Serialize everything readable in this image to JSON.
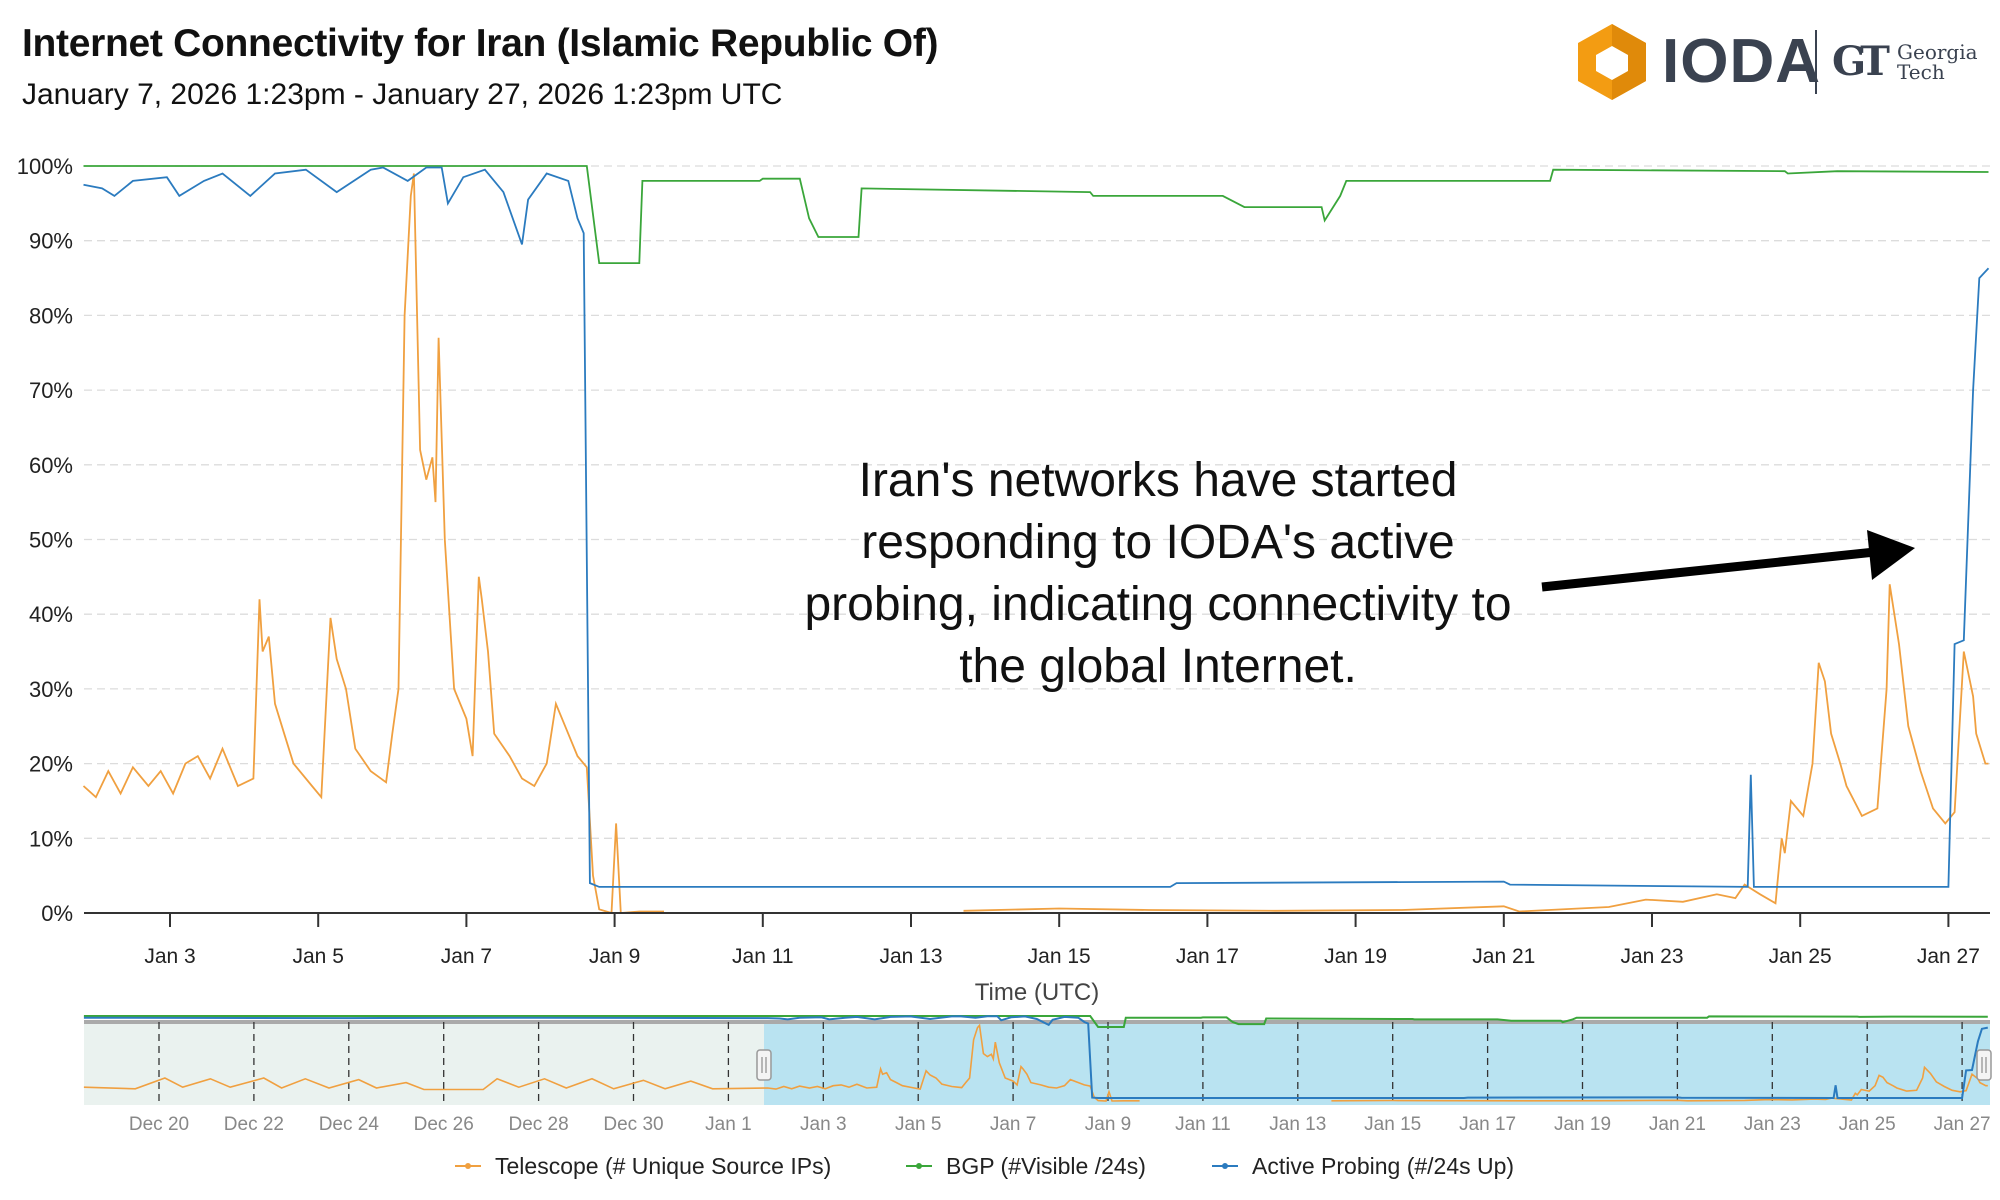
{
  "header": {
    "title": "Internet Connectivity for  Iran (Islamic Republic Of)",
    "subtitle": "January 7, 2026 1:23pm - January 27, 2026 1:23pm UTC"
  },
  "logo": {
    "ioda": "IODA",
    "gt_mark": "GT",
    "gt_line1": "Georgia",
    "gt_line2": "Tech"
  },
  "colors": {
    "telescope": "#f0a040",
    "bgp": "#3aa63a",
    "active_probing": "#2b7bbf",
    "logo_orange": "#f39c12",
    "navigator_selected": "#b9e3f1",
    "navigator_unselected": "#eaf2ef"
  },
  "chart_data": {
    "type": "line",
    "title": "Internet Connectivity for  Iran (Islamic Republic Of)",
    "xlabel": "Time (UTC)",
    "ylabel": "",
    "xlim": [
      "2026-01-01T20:00",
      "2026-01-27T13:23"
    ],
    "ylim": [
      0,
      100
    ],
    "y_ticks": [
      "0%",
      "10%",
      "20%",
      "30%",
      "40%",
      "50%",
      "60%",
      "70%",
      "80%",
      "90%",
      "100%"
    ],
    "x_ticks": [
      {
        "date": "2026-01-03",
        "label": "Jan 3"
      },
      {
        "date": "2026-01-05",
        "label": "Jan 5"
      },
      {
        "date": "2026-01-07",
        "label": "Jan 7"
      },
      {
        "date": "2026-01-09",
        "label": "Jan 9"
      },
      {
        "date": "2026-01-11",
        "label": "Jan 11"
      },
      {
        "date": "2026-01-13",
        "label": "Jan 13"
      },
      {
        "date": "2026-01-15",
        "label": "Jan 15"
      },
      {
        "date": "2026-01-17",
        "label": "Jan 17"
      },
      {
        "date": "2026-01-19",
        "label": "Jan 19"
      },
      {
        "date": "2026-01-21",
        "label": "Jan 21"
      },
      {
        "date": "2026-01-23",
        "label": "Jan 23"
      },
      {
        "date": "2026-01-25",
        "label": "Jan 25"
      },
      {
        "date": "2026-01-27",
        "label": "Jan 27"
      }
    ],
    "grid": true,
    "legend_position": "bottom",
    "series": [
      {
        "name": "Telescope (# Unique Source IPs)",
        "color": "#f0a040",
        "points": [
          [
            "2026-01-01T20:00",
            17
          ],
          [
            "2026-01-02T00:00",
            15.5
          ],
          [
            "2026-01-02T04:00",
            19
          ],
          [
            "2026-01-02T08:00",
            16
          ],
          [
            "2026-01-02T12:00",
            19.5
          ],
          [
            "2026-01-02T17:00",
            17
          ],
          [
            "2026-01-02T21:00",
            19
          ],
          [
            "2026-01-03T01:00",
            16
          ],
          [
            "2026-01-03T05:00",
            20
          ],
          [
            "2026-01-03T09:00",
            21
          ],
          [
            "2026-01-03T13:00",
            18
          ],
          [
            "2026-01-03T17:00",
            22
          ],
          [
            "2026-01-03T22:00",
            17
          ],
          [
            "2026-01-04T03:00",
            18
          ],
          [
            "2026-01-04T05:00",
            42
          ],
          [
            "2026-01-04T06:00",
            35
          ],
          [
            "2026-01-04T08:00",
            37
          ],
          [
            "2026-01-04T10:00",
            28
          ],
          [
            "2026-01-04T13:00",
            24
          ],
          [
            "2026-01-04T16:00",
            20
          ],
          [
            "2026-01-04T22:00",
            17
          ],
          [
            "2026-01-05T01:00",
            15.5
          ],
          [
            "2026-01-05T04:00",
            39.5
          ],
          [
            "2026-01-05T06:00",
            34
          ],
          [
            "2026-01-05T09:00",
            30
          ],
          [
            "2026-01-05T12:00",
            22
          ],
          [
            "2026-01-05T17:00",
            19
          ],
          [
            "2026-01-05T22:00",
            17.5
          ],
          [
            "2026-01-06T00:00",
            24
          ],
          [
            "2026-01-06T02:00",
            30
          ],
          [
            "2026-01-06T04:00",
            80
          ],
          [
            "2026-01-06T06:00",
            96
          ],
          [
            "2026-01-06T07:00",
            99
          ],
          [
            "2026-01-06T09:00",
            62
          ],
          [
            "2026-01-06T11:00",
            58
          ],
          [
            "2026-01-06T13:00",
            61
          ],
          [
            "2026-01-06T14:00",
            55
          ],
          [
            "2026-01-06T15:00",
            77
          ],
          [
            "2026-01-06T17:00",
            50
          ],
          [
            "2026-01-06T20:00",
            30
          ],
          [
            "2026-01-07T00:00",
            26
          ],
          [
            "2026-01-07T02:00",
            21
          ],
          [
            "2026-01-07T04:00",
            45
          ],
          [
            "2026-01-07T05:00",
            42
          ],
          [
            "2026-01-07T07:00",
            35
          ],
          [
            "2026-01-07T09:00",
            24
          ],
          [
            "2026-01-07T14:00",
            21
          ],
          [
            "2026-01-07T18:00",
            18
          ],
          [
            "2026-01-07T22:00",
            17
          ],
          [
            "2026-01-08T02:00",
            20
          ],
          [
            "2026-01-08T05:00",
            28
          ],
          [
            "2026-01-08T08:00",
            25
          ],
          [
            "2026-01-08T12:00",
            21
          ],
          [
            "2026-01-08T15:00",
            19.5
          ],
          [
            "2026-01-08T17:00",
            5
          ],
          [
            "2026-01-08T19:00",
            0.5
          ],
          [
            "2026-01-08T23:00",
            0
          ],
          [
            "2026-01-09T00:30",
            12
          ],
          [
            "2026-01-09T02:00",
            0
          ],
          [
            "2026-01-09T08:00",
            0.2
          ],
          [
            "2026-01-09T16:00",
            0.2
          ],
          null,
          [
            "2026-01-13T17:00",
            0.3
          ],
          [
            "2026-01-15T00:00",
            0.6
          ],
          [
            "2026-01-16T05:00",
            0.4
          ],
          [
            "2026-01-17T22:00",
            0.3
          ],
          [
            "2026-01-19T15:00",
            0.4
          ],
          [
            "2026-01-21T00:00",
            0.9
          ],
          [
            "2026-01-21T05:00",
            0.2
          ],
          [
            "2026-01-22T10:00",
            0.8
          ],
          [
            "2026-01-22T22:00",
            1.8
          ],
          [
            "2026-01-23T10:00",
            1.5
          ],
          [
            "2026-01-23T21:00",
            2.5
          ],
          [
            "2026-01-24T03:00",
            2
          ],
          [
            "2026-01-24T06:00",
            3.8
          ],
          [
            "2026-01-24T11:00",
            2.5
          ],
          [
            "2026-01-24T16:00",
            1.3
          ],
          [
            "2026-01-24T18:00",
            10
          ],
          [
            "2026-01-24T19:00",
            8
          ],
          [
            "2026-01-24T21:00",
            15
          ],
          [
            "2026-01-25T01:00",
            13
          ],
          [
            "2026-01-25T04:00",
            20
          ],
          [
            "2026-01-25T06:00",
            33.5
          ],
          [
            "2026-01-25T08:00",
            31
          ],
          [
            "2026-01-25T10:00",
            24
          ],
          [
            "2026-01-25T13:00",
            20
          ],
          [
            "2026-01-25T15:00",
            17
          ],
          [
            "2026-01-25T20:00",
            13
          ],
          [
            "2026-01-26T01:00",
            14
          ],
          [
            "2026-01-26T04:00",
            30
          ],
          [
            "2026-01-26T05:00",
            44
          ],
          [
            "2026-01-26T08:00",
            36
          ],
          [
            "2026-01-26T11:00",
            25
          ],
          [
            "2026-01-26T15:00",
            19
          ],
          [
            "2026-01-26T19:00",
            14
          ],
          [
            "2026-01-26T23:00",
            12
          ],
          [
            "2026-01-27T02:00",
            13.5
          ],
          [
            "2026-01-27T05:00",
            35
          ],
          [
            "2026-01-27T08:00",
            29
          ],
          [
            "2026-01-27T09:00",
            24
          ],
          [
            "2026-01-27T12:00",
            20
          ],
          [
            "2026-01-27T13:00",
            20
          ]
        ]
      },
      {
        "name": "BGP (#Visible /24s)",
        "color": "#3aa63a",
        "points": [
          [
            "2026-01-01T20:00",
            100
          ],
          [
            "2026-01-08T15:00",
            100
          ],
          [
            "2026-01-08T19:00",
            87
          ],
          [
            "2026-01-09T08:00",
            87
          ],
          [
            "2026-01-09T09:00",
            98
          ],
          [
            "2026-01-10T23:00",
            98
          ],
          [
            "2026-01-11T00:00",
            98.3
          ],
          [
            "2026-01-11T12:00",
            98.3
          ],
          [
            "2026-01-11T15:00",
            93
          ],
          [
            "2026-01-11T18:00",
            90.5
          ],
          [
            "2026-01-12T07:00",
            90.5
          ],
          [
            "2026-01-12T08:00",
            97
          ],
          [
            "2026-01-15T10:00",
            96.5
          ],
          [
            "2026-01-15T11:00",
            96
          ],
          [
            "2026-01-17T05:00",
            96
          ],
          [
            "2026-01-17T12:00",
            94.5
          ],
          [
            "2026-01-18T13:00",
            94.5
          ],
          [
            "2026-01-18T14:00",
            92.7
          ],
          [
            "2026-01-18T19:00",
            96
          ],
          [
            "2026-01-18T21:00",
            98
          ],
          [
            "2026-01-21T15:00",
            98
          ],
          [
            "2026-01-21T16:00",
            99.5
          ],
          [
            "2026-01-24T19:00",
            99.3
          ],
          [
            "2026-01-24T20:00",
            99
          ],
          [
            "2026-01-25T12:00",
            99.3
          ],
          [
            "2026-01-27T13:00",
            99.2
          ]
        ]
      },
      {
        "name": "Active Probing (#/24s Up)",
        "color": "#2b7bbf",
        "points": [
          [
            "2026-01-01T20:00",
            97.5
          ],
          [
            "2026-01-02T02:00",
            97
          ],
          [
            "2026-01-02T06:00",
            96
          ],
          [
            "2026-01-02T12:00",
            98
          ],
          [
            "2026-01-02T23:00",
            98.5
          ],
          [
            "2026-01-03T03:00",
            96
          ],
          [
            "2026-01-03T11:00",
            98
          ],
          [
            "2026-01-03T17:00",
            99
          ],
          [
            "2026-01-04T02:00",
            96
          ],
          [
            "2026-01-04T10:00",
            99
          ],
          [
            "2026-01-04T20:00",
            99.5
          ],
          [
            "2026-01-05T06:00",
            96.5
          ],
          [
            "2026-01-05T17:00",
            99.5
          ],
          [
            "2026-01-05T21:00",
            99.8
          ],
          [
            "2026-01-06T05:00",
            98
          ],
          [
            "2026-01-06T11:00",
            99.8
          ],
          [
            "2026-01-06T16:00",
            99.8
          ],
          [
            "2026-01-06T18:00",
            95
          ],
          [
            "2026-01-06T23:00",
            98.5
          ],
          [
            "2026-01-07T06:00",
            99.5
          ],
          [
            "2026-01-07T12:00",
            96.5
          ],
          [
            "2026-01-07T18:00",
            89.5
          ],
          [
            "2026-01-07T20:00",
            95.5
          ],
          [
            "2026-01-08T02:00",
            99
          ],
          [
            "2026-01-08T09:00",
            98
          ],
          [
            "2026-01-08T12:00",
            93
          ],
          [
            "2026-01-08T14:00",
            91
          ],
          [
            "2026-01-08T16:00",
            4
          ],
          [
            "2026-01-08T19:00",
            3.5
          ],
          [
            "2026-01-16T12:00",
            3.5
          ],
          [
            "2026-01-16T14:00",
            4
          ],
          [
            "2026-01-21T00:00",
            4.2
          ],
          [
            "2026-01-21T02:00",
            3.8
          ],
          [
            "2026-01-24T07:00",
            3.5
          ],
          [
            "2026-01-24T08:00",
            18.5
          ],
          [
            "2026-01-24T09:00",
            3.5
          ],
          [
            "2026-01-27T00:00",
            3.5
          ],
          [
            "2026-01-27T02:00",
            36
          ],
          [
            "2026-01-27T05:00",
            36.5
          ],
          [
            "2026-01-27T08:00",
            70
          ],
          [
            "2026-01-27T10:00",
            85
          ],
          [
            "2026-01-27T13:00",
            86.3
          ]
        ]
      }
    ],
    "annotation": {
      "lines": [
        "Iran's networks have started",
        "responding to IODA's active",
        "probing, indicating connectivity to",
        "the global Internet."
      ],
      "arrow": true
    },
    "navigator": {
      "xlim": [
        "2025-12-18T10:00",
        "2026-01-27T13:23"
      ],
      "selected_range": [
        "2026-01-01T18:00",
        "2026-01-27T13:23"
      ],
      "x_ticks": [
        {
          "date": "2025-12-20",
          "label": "Dec 20"
        },
        {
          "date": "2025-12-22",
          "label": "Dec 22"
        },
        {
          "date": "2025-12-24",
          "label": "Dec 24"
        },
        {
          "date": "2025-12-26",
          "label": "Dec 26"
        },
        {
          "date": "2025-12-28",
          "label": "Dec 28"
        },
        {
          "date": "2025-12-30",
          "label": "Dec 30"
        },
        {
          "date": "2026-01-01",
          "label": "Jan 1"
        },
        {
          "date": "2026-01-03",
          "label": "Jan 3"
        },
        {
          "date": "2026-01-05",
          "label": "Jan 5"
        },
        {
          "date": "2026-01-07",
          "label": "Jan 7"
        },
        {
          "date": "2026-01-09",
          "label": "Jan 9"
        },
        {
          "date": "2026-01-11",
          "label": "Jan 11"
        },
        {
          "date": "2026-01-13",
          "label": "Jan 13"
        },
        {
          "date": "2026-01-15",
          "label": "Jan 15"
        },
        {
          "date": "2026-01-17",
          "label": "Jan 17"
        },
        {
          "date": "2026-01-19",
          "label": "Jan 19"
        },
        {
          "date": "2026-01-21",
          "label": "Jan 21"
        },
        {
          "date": "2026-01-23",
          "label": "Jan 23"
        },
        {
          "date": "2026-01-25",
          "label": "Jan 25"
        },
        {
          "date": "2026-01-27",
          "label": "Jan 27"
        }
      ],
      "earlier_telescope": [
        [
          "2025-12-18T10:00",
          18
        ],
        [
          "2025-12-19T12:00",
          16
        ],
        [
          "2025-12-20T03:00",
          30
        ],
        [
          "2025-12-20T12:00",
          18
        ],
        [
          "2025-12-21T02:00",
          29
        ],
        [
          "2025-12-21T12:00",
          18
        ],
        [
          "2025-12-22T05:00",
          30
        ],
        [
          "2025-12-22T14:00",
          17
        ],
        [
          "2025-12-23T02:00",
          29
        ],
        [
          "2025-12-23T14:00",
          17
        ],
        [
          "2025-12-24T05:00",
          28
        ],
        [
          "2025-12-24T14:00",
          17
        ],
        [
          "2025-12-25T05:00",
          24
        ],
        [
          "2025-12-25T14:00",
          15
        ],
        [
          "2025-12-26T20:00",
          15
        ],
        [
          "2025-12-27T03:00",
          29
        ],
        [
          "2025-12-27T14:00",
          18
        ],
        [
          "2025-12-28T03:00",
          29
        ],
        [
          "2025-12-28T14:00",
          17
        ],
        [
          "2025-12-29T03:00",
          29
        ],
        [
          "2025-12-29T14:00",
          16
        ],
        [
          "2025-12-30T05:00",
          27
        ],
        [
          "2025-12-30T16:00",
          16
        ],
        [
          "2025-12-31T05:00",
          26
        ],
        [
          "2025-12-31T16:00",
          16
        ],
        [
          "2026-01-01T20:00",
          17
        ]
      ],
      "earlier_bgp": [
        [
          "2025-12-18T10:00",
          100
        ],
        [
          "2026-01-01T20:00",
          100
        ]
      ],
      "earlier_active_probing": [
        [
          "2025-12-18T10:00",
          98
        ],
        [
          "2025-12-24T00:00",
          97.5
        ],
        [
          "2025-12-28T00:00",
          98
        ],
        [
          "2026-01-01T20:00",
          97.5
        ]
      ]
    }
  }
}
